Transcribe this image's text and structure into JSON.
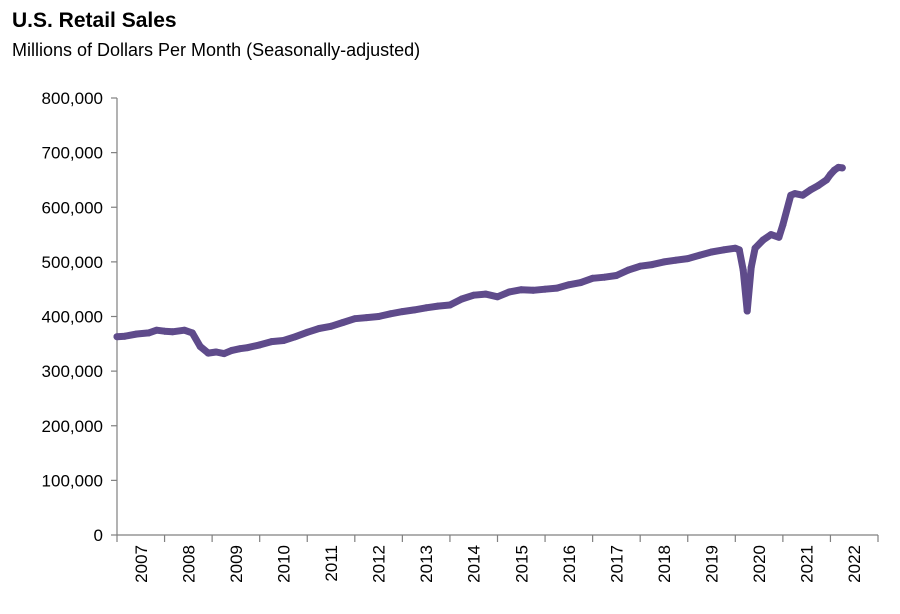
{
  "chart_data": {
    "type": "line",
    "title": "U.S. Retail Sales",
    "subtitle": "Millions of Dollars Per Month (Seasonally-adjusted)",
    "xlabel": "",
    "ylabel": "",
    "ylim": [
      0,
      800000
    ],
    "y_ticks": [
      0,
      100000,
      200000,
      300000,
      400000,
      500000,
      600000,
      700000,
      800000
    ],
    "y_tick_labels": [
      "0",
      "100,000",
      "200,000",
      "300,000",
      "400,000",
      "500,000",
      "600,000",
      "700,000",
      "800,000"
    ],
    "x_tick_labels": [
      "2007",
      "2008",
      "2009",
      "2010",
      "2011",
      "2012",
      "2013",
      "2014",
      "2015",
      "2016",
      "2017",
      "2018",
      "2019",
      "2020",
      "2021",
      "2022"
    ],
    "grid": false,
    "line_color": "#5F4B8B",
    "series": [
      {
        "name": "",
        "x": [
          "2007-01",
          "2007-03",
          "2007-06",
          "2007-09",
          "2007-11",
          "2008-01",
          "2008-03",
          "2008-06",
          "2008-08",
          "2008-10",
          "2008-12",
          "2009-02",
          "2009-04",
          "2009-06",
          "2009-08",
          "2009-10",
          "2010-01",
          "2010-04",
          "2010-07",
          "2010-10",
          "2011-01",
          "2011-04",
          "2011-07",
          "2011-10",
          "2012-01",
          "2012-04",
          "2012-07",
          "2012-10",
          "2013-01",
          "2013-04",
          "2013-07",
          "2013-10",
          "2014-01",
          "2014-04",
          "2014-07",
          "2014-10",
          "2015-01",
          "2015-04",
          "2015-07",
          "2015-10",
          "2016-01",
          "2016-04",
          "2016-07",
          "2016-10",
          "2017-01",
          "2017-04",
          "2017-07",
          "2017-10",
          "2018-01",
          "2018-04",
          "2018-07",
          "2018-10",
          "2019-01",
          "2019-04",
          "2019-07",
          "2019-10",
          "2020-01",
          "2020-02",
          "2020-03",
          "2020-04",
          "2020-05",
          "2020-06",
          "2020-08",
          "2020-10",
          "2020-12",
          "2021-01",
          "2021-03",
          "2021-04",
          "2021-06",
          "2021-08",
          "2021-10",
          "2021-12",
          "2022-01",
          "2022-02",
          "2022-03",
          "2022-04"
        ],
        "values": [
          363000,
          364000,
          368000,
          370000,
          375000,
          373000,
          372000,
          375000,
          370000,
          345000,
          333000,
          335000,
          332000,
          338000,
          341000,
          343000,
          348000,
          354000,
          356000,
          363000,
          371000,
          378000,
          382000,
          389000,
          396000,
          398000,
          400000,
          405000,
          409000,
          412000,
          416000,
          419000,
          421000,
          432000,
          439000,
          441000,
          436000,
          445000,
          449000,
          448000,
          450000,
          452000,
          458000,
          462000,
          470000,
          472000,
          475000,
          485000,
          492000,
          495000,
          500000,
          503000,
          506000,
          512000,
          518000,
          522000,
          525000,
          522000,
          485000,
          410000,
          490000,
          525000,
          540000,
          550000,
          545000,
          568000,
          622000,
          625000,
          622000,
          632000,
          640000,
          650000,
          660000,
          668000,
          673000,
          672000
        ]
      }
    ]
  }
}
